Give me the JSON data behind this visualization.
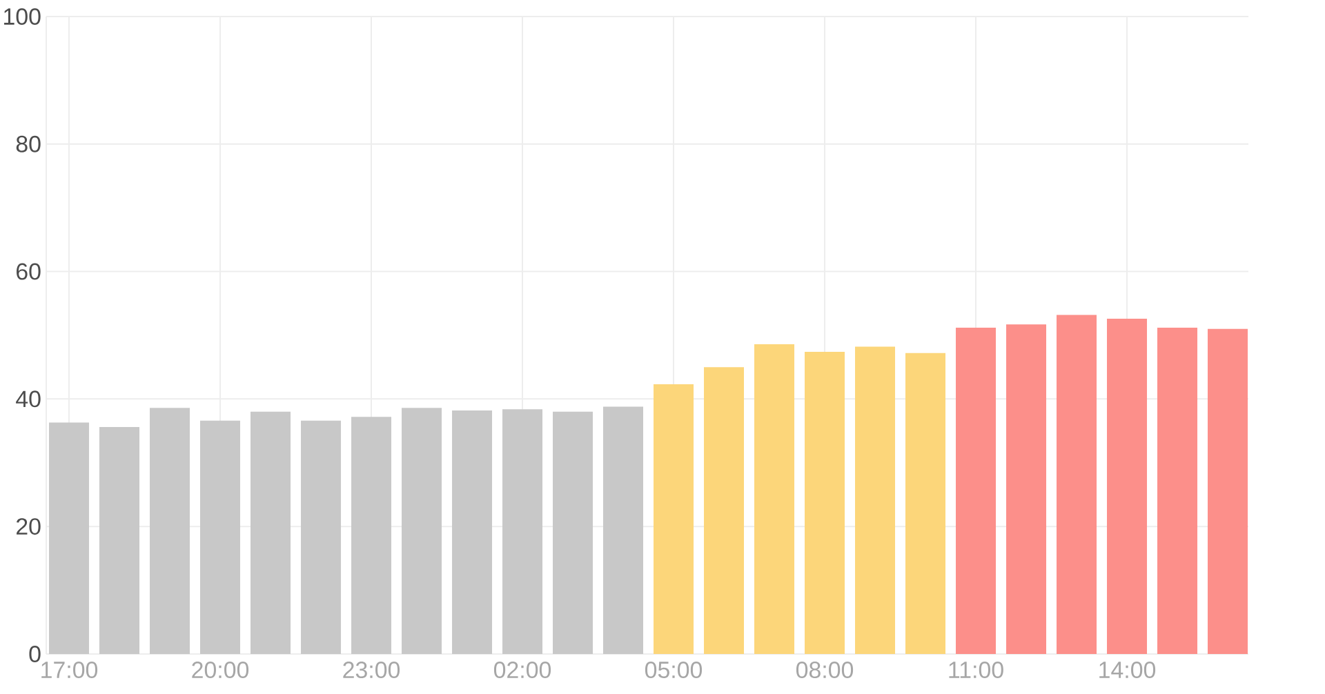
{
  "chart_data": {
    "type": "bar",
    "categories": [
      "17:00",
      null,
      null,
      "20:00",
      null,
      null,
      "23:00",
      null,
      null,
      "02:00",
      null,
      null,
      "05:00",
      null,
      null,
      "08:00",
      null,
      null,
      "11:00",
      null,
      null,
      "14:00",
      null,
      null
    ],
    "values": [
      36.3,
      35.6,
      38.6,
      36.6,
      38.0,
      36.6,
      37.2,
      38.6,
      38.2,
      38.4,
      38.0,
      38.8,
      42.3,
      45.0,
      48.6,
      47.4,
      48.2,
      47.2,
      51.2,
      51.7,
      53.2,
      52.6,
      51.2,
      51.0
    ],
    "colors": [
      "#c8c8c8",
      "#c8c8c8",
      "#c8c8c8",
      "#c8c8c8",
      "#c8c8c8",
      "#c8c8c8",
      "#c8c8c8",
      "#c8c8c8",
      "#c8c8c8",
      "#c8c8c8",
      "#c8c8c8",
      "#c8c8c8",
      "#fcd67a",
      "#fcd67a",
      "#fcd67a",
      "#fcd67a",
      "#fcd67a",
      "#fcd67a",
      "#fc8f8a",
      "#fc8f8a",
      "#fc8f8a",
      "#fc8f8a",
      "#fc8f8a",
      "#fc8f8a"
    ],
    "ylim": [
      0,
      100
    ],
    "yticks": [
      0,
      20,
      40,
      60,
      80,
      100
    ],
    "grid": true
  }
}
